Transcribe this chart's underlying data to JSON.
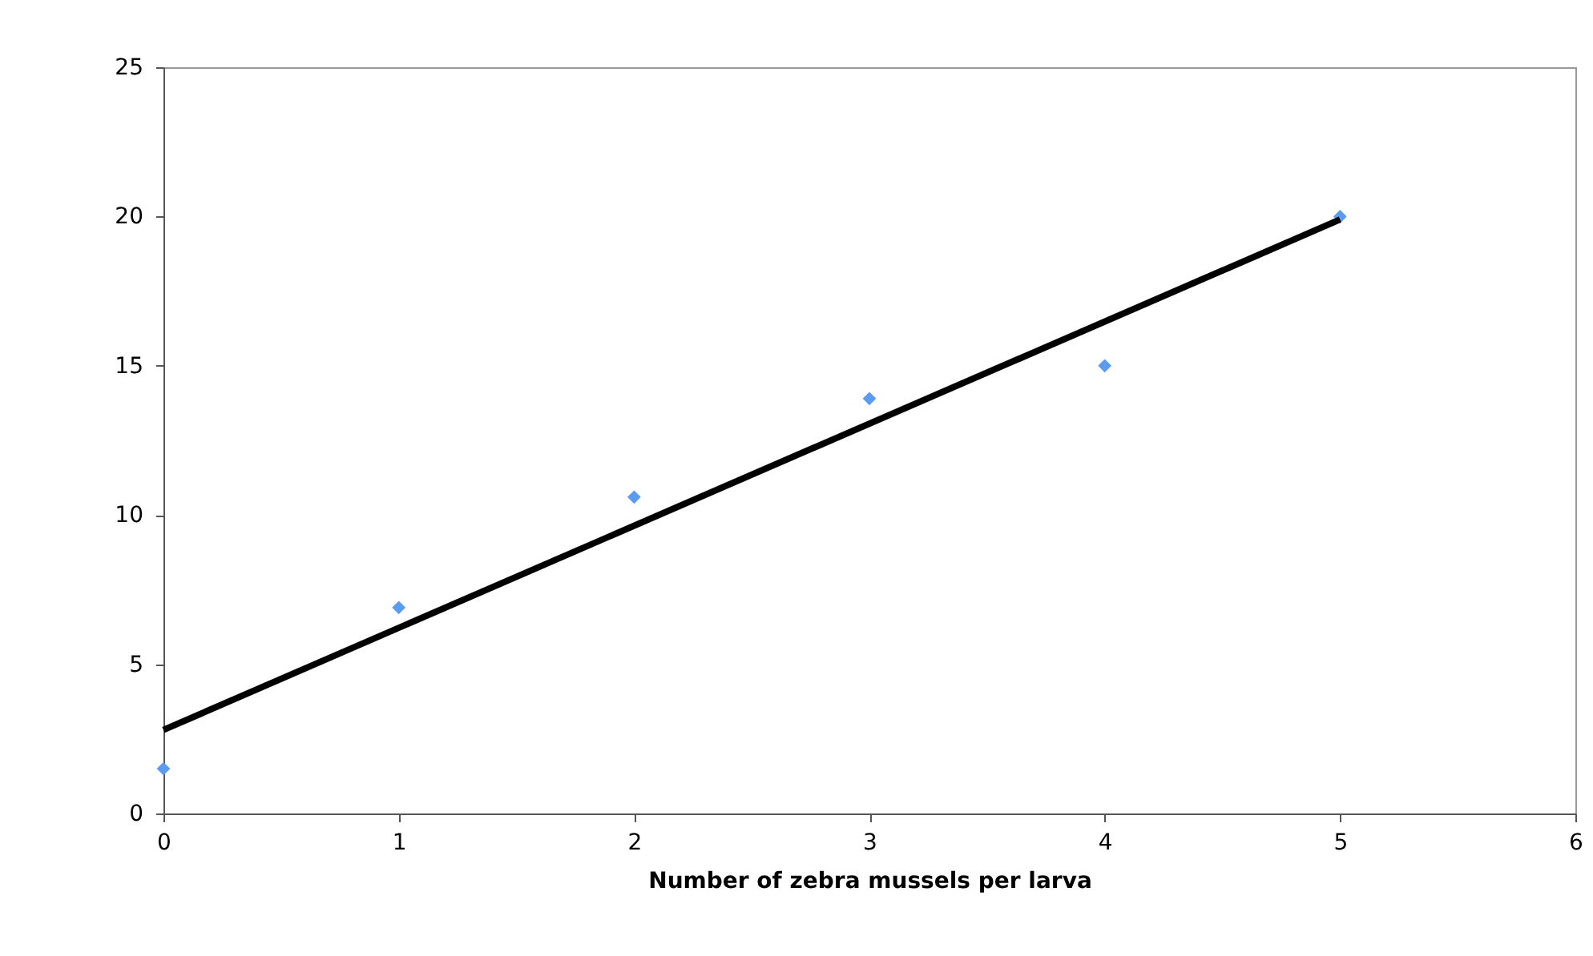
{
  "chart_data": {
    "type": "scatter",
    "xlabel": "Number of zebra mussels per larva",
    "grid": false,
    "xlim": [
      0,
      6
    ],
    "xticks": [
      0,
      1,
      2,
      3,
      4,
      5,
      6
    ],
    "ylim": [
      0,
      25
    ],
    "yticks": [
      0,
      5,
      10,
      15,
      20,
      25
    ],
    "series": [
      {
        "marker": "diamond",
        "color": "#5b9bf0",
        "x": [
          0,
          1,
          2,
          3,
          4,
          5
        ],
        "values": [
          1.5,
          6.9,
          10.6,
          13.9,
          15.0,
          20.0
        ]
      },
      {
        "type": "line",
        "marker": "none",
        "color": "#000000",
        "x": [
          0,
          5
        ],
        "values": [
          2.8,
          19.9
        ]
      }
    ]
  }
}
